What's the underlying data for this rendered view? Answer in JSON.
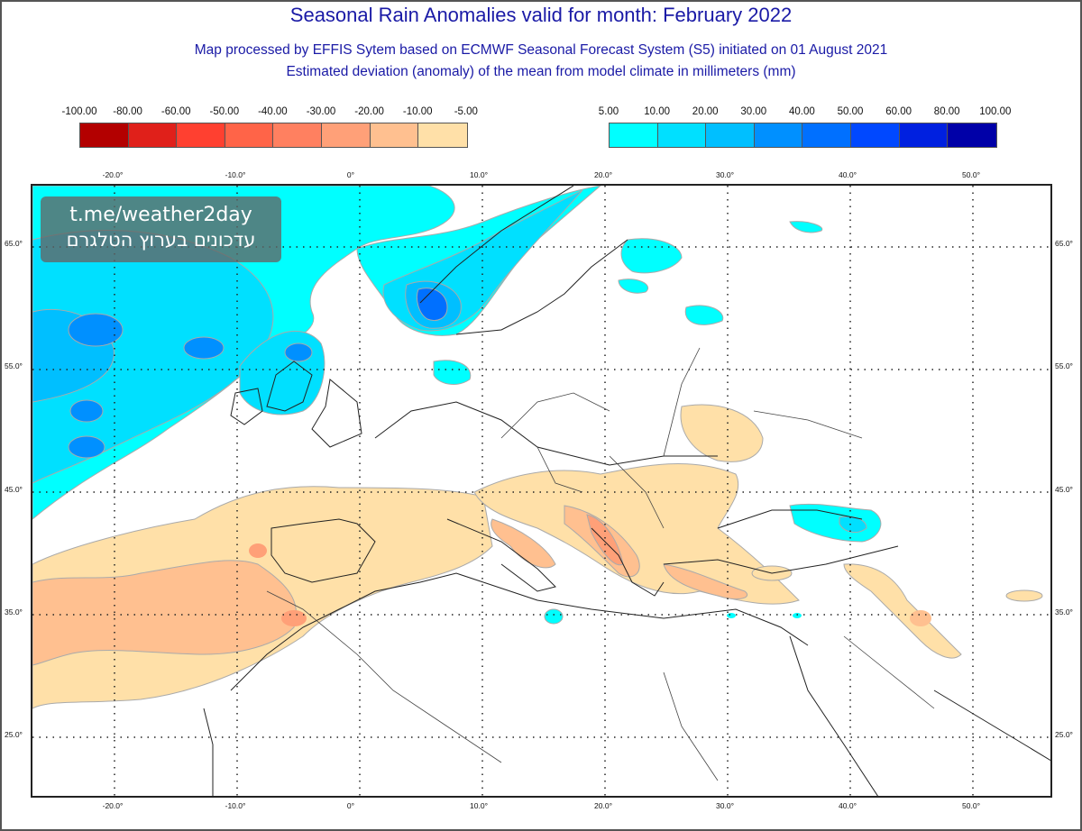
{
  "header": {
    "title": "Seasonal Rain Anomalies valid for month: February 2022",
    "subtitle_1": "Map processed by EFFIS Sytem based on ECMWF Seasonal Forecast System (S5) initiated on 01 August 2021",
    "subtitle_2": "Estimated deviation (anomaly) of the mean from model climate in millimeters (mm)"
  },
  "legend_negative": {
    "labels": [
      "-100.00",
      "-80.00",
      "-60.00",
      "-50.00",
      "-40.00",
      "-30.00",
      "-20.00",
      "-10.00",
      "-5.00"
    ],
    "colors": [
      "#b30000",
      "#e0201a",
      "#ff4030",
      "#ff6448",
      "#ff8060",
      "#ffa078",
      "#ffc090",
      "#ffe0a8"
    ]
  },
  "legend_positive": {
    "labels": [
      "5.00",
      "10.00",
      "20.00",
      "30.00",
      "40.00",
      "50.00",
      "60.00",
      "80.00",
      "100.00"
    ],
    "colors": [
      "#00ffff",
      "#00e0ff",
      "#00bfff",
      "#0090ff",
      "#0070ff",
      "#0048ff",
      "#0020e0",
      "#0000a8"
    ]
  },
  "axes": {
    "lon_ticks": [
      "-20.0°",
      "-10.0°",
      "0°",
      "10.0°",
      "20.0°",
      "30.0°",
      "40.0°",
      "50.0°"
    ],
    "lat_ticks": [
      "65.0°",
      "55.0°",
      "45.0°",
      "35.0°",
      "25.0°"
    ]
  },
  "watermark": {
    "line1": "t.me/weather2day",
    "line2": "עדכונים בערוץ הטלגרם"
  },
  "map": {
    "region": "Europe, North Atlantic, North Africa, Middle East",
    "wet_regions": [
      "North Atlantic",
      "Western Norway",
      "Scotland / Ireland",
      "Southern Finland / Baltic",
      "Black Sea south coast"
    ],
    "dry_regions": [
      "Iberia / Morocco",
      "Italy",
      "Balkans / Albania / Greece",
      "Southern Turkey",
      "Ukraine",
      "Iraq / Zagros"
    ]
  }
}
